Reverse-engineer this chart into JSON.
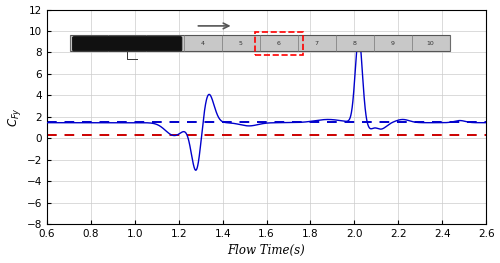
{
  "xlabel": "Flow Time(s)",
  "ylabel": "$C_{Fy}$",
  "xlim": [
    0.6,
    2.6
  ],
  "ylim": [
    -8,
    12
  ],
  "xticks": [
    0.6,
    0.8,
    1.0,
    1.2,
    1.4,
    1.6,
    1.8,
    2.0,
    2.2,
    2.4,
    2.6
  ],
  "yticks": [
    -8,
    -6,
    -4,
    -2,
    0,
    2,
    4,
    6,
    8,
    10,
    12
  ],
  "blue_dashed_y": 1.5,
  "red_dashed_y": 0.3,
  "line_color": "#0000CC",
  "blue_dash_color": "#0000CC",
  "red_dash_color": "#CC0000",
  "background_color": "#ffffff",
  "grid_color": "#cccccc"
}
